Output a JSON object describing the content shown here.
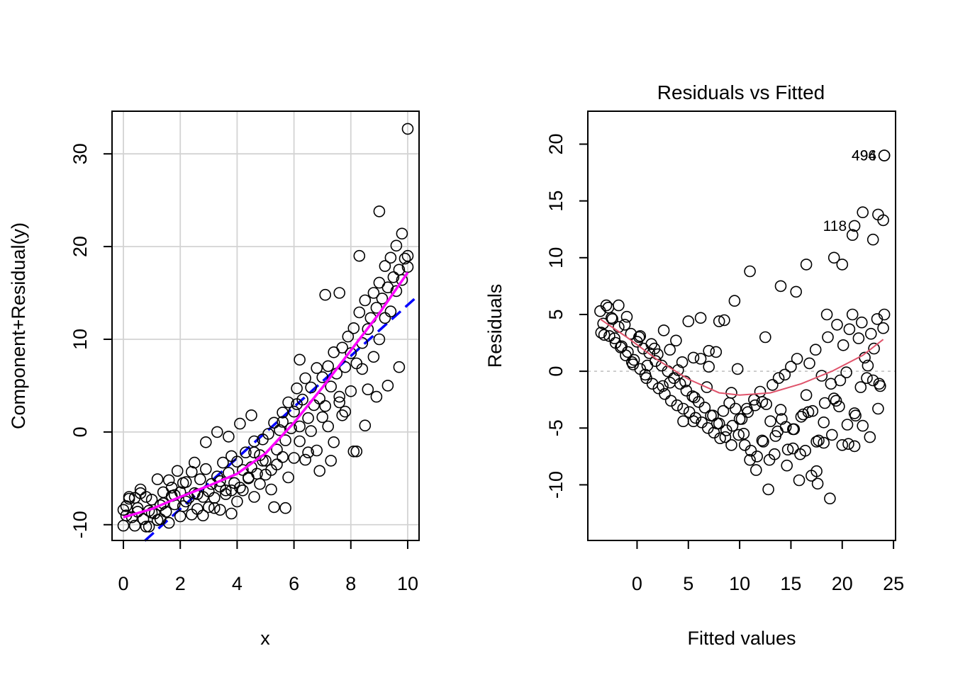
{
  "chart_data": [
    {
      "type": "scatter",
      "title": "",
      "xlabel": "x",
      "ylabel": "Component+Residual(y)",
      "xlim": [
        -0.4,
        10.4
      ],
      "ylim": [
        -11.7,
        34.6
      ],
      "xticks": [
        0,
        2,
        4,
        6,
        8,
        10
      ],
      "yticks": [
        -10,
        0,
        10,
        20,
        30
      ],
      "xtick_labels": [
        "0",
        "2",
        "4",
        "6",
        "8",
        "10"
      ],
      "ytick_labels": [
        "-10",
        "0",
        "10",
        "20",
        "30"
      ],
      "grid": true,
      "colors": {
        "points": "#000000",
        "component_line": "#0000ff",
        "residual_smooth": "#ff00ff",
        "grid": "#d3d3d3"
      },
      "component_line": {
        "style": "dashed",
        "intercept": -13.8,
        "slope": 2.75
      },
      "residual_smooth": {
        "x": [
          0,
          1,
          2,
          3,
          4,
          5,
          6,
          7,
          8,
          9,
          10
        ],
        "y": [
          -9.2,
          -8.3,
          -7.0,
          -5.8,
          -4.5,
          -2.3,
          1.0,
          4.8,
          8.8,
          12.8,
          17.2
        ]
      },
      "points": {
        "x": [
          0.0,
          0.1,
          0.2,
          0.3,
          0.4,
          0.5,
          0.6,
          0.7,
          0.8,
          0.9,
          1.0,
          1.1,
          1.2,
          1.3,
          1.4,
          1.5,
          1.6,
          1.7,
          1.8,
          1.9,
          2.0,
          2.1,
          2.2,
          2.3,
          2.4,
          2.5,
          2.6,
          2.7,
          2.8,
          2.9,
          3.0,
          3.1,
          3.2,
          3.3,
          3.4,
          3.5,
          3.6,
          3.7,
          3.8,
          3.9,
          4.0,
          4.1,
          4.2,
          4.3,
          4.4,
          4.5,
          4.6,
          4.7,
          4.8,
          4.9,
          5.0,
          5.1,
          5.2,
          5.3,
          5.4,
          5.5,
          5.6,
          5.7,
          5.8,
          5.9,
          6.0,
          6.1,
          6.2,
          6.3,
          6.4,
          6.5,
          6.6,
          6.7,
          6.8,
          6.9,
          7.0,
          7.1,
          7.2,
          7.3,
          7.4,
          7.5,
          7.6,
          7.7,
          7.8,
          7.9,
          8.0,
          8.1,
          8.2,
          8.3,
          8.4,
          8.5,
          8.6,
          8.7,
          8.8,
          8.9,
          9.0,
          9.1,
          9.2,
          9.3,
          9.4,
          9.5,
          9.6,
          9.7,
          9.8,
          9.9,
          10.0,
          0.0,
          0.2,
          0.4,
          0.6,
          0.8,
          1.0,
          1.2,
          1.4,
          1.6,
          1.8,
          2.0,
          2.2,
          2.4,
          2.6,
          2.8,
          3.0,
          3.2,
          3.4,
          3.6,
          3.8,
          4.0,
          4.2,
          4.4,
          4.6,
          4.8,
          5.0,
          5.2,
          5.4,
          5.6,
          5.8,
          6.0,
          6.2,
          6.4,
          6.6,
          6.8,
          7.0,
          7.2,
          7.4,
          7.6,
          7.8,
          8.0,
          8.2,
          8.4,
          8.6,
          8.8,
          9.0,
          9.2,
          9.4,
          9.6,
          9.8,
          10.0,
          0.1,
          0.5,
          0.9,
          1.3,
          1.7,
          2.1,
          2.5,
          2.9,
          3.3,
          3.7,
          4.1,
          4.5,
          4.9,
          5.3,
          5.7,
          6.1,
          6.5,
          6.9,
          7.3,
          7.7,
          8.1,
          8.5,
          8.9,
          9.3,
          9.7,
          3.4,
          3.8,
          4.6,
          5.6,
          6.2,
          7.1,
          7.6,
          8.3,
          9.0,
          10.0
        ],
        "y": [
          -10.1,
          -8.0,
          -7.0,
          -9.2,
          -7.1,
          -8.2,
          -6.2,
          -9.4,
          -7.0,
          -8.5,
          -7.3,
          -8.8,
          -5.1,
          -7.9,
          -6.5,
          -8.6,
          -5.2,
          -6.9,
          -7.8,
          -4.2,
          -6.5,
          -8.0,
          -5.4,
          -7.1,
          -4.3,
          -6.6,
          -8.3,
          -5.1,
          -7.0,
          -4.0,
          -6.4,
          -5.6,
          -8.2,
          -4.8,
          -5.9,
          -3.3,
          -6.7,
          -4.4,
          -2.6,
          -5.5,
          -3.2,
          -6.0,
          -4.1,
          -2.2,
          -5.0,
          -3.8,
          -1.0,
          -4.5,
          -2.5,
          -0.8,
          -3.1,
          -0.2,
          -4.1,
          1.0,
          -1.9,
          0.2,
          2.1,
          -0.9,
          3.2,
          0.4,
          2.2,
          4.7,
          0.6,
          3.5,
          5.8,
          1.5,
          4.8,
          2.9,
          6.9,
          3.6,
          5.9,
          2.8,
          7.1,
          4.9,
          8.6,
          6.3,
          3.2,
          9.1,
          7.0,
          10.3,
          8.5,
          11.2,
          7.4,
          12.9,
          9.6,
          14.2,
          11.1,
          12.3,
          15.0,
          13.4,
          16.1,
          14.4,
          17.9,
          15.6,
          18.8,
          16.7,
          20.1,
          17.5,
          21.4,
          18.7,
          19.0,
          -8.4,
          -7.2,
          -10.1,
          -6.6,
          -10.2,
          -8.7,
          -9.5,
          -7.7,
          -9.8,
          -6.8,
          -9.1,
          -7.5,
          -8.9,
          -6.7,
          -9.0,
          -8.1,
          -7.1,
          -8.4,
          -6.3,
          -8.8,
          -7.5,
          -6.3,
          -4.9,
          -7.0,
          -5.6,
          -4.6,
          -6.2,
          -3.5,
          -2.7,
          -4.9,
          -2.8,
          -1.0,
          -3.0,
          0.1,
          -2.0,
          1.6,
          0.6,
          -1.1,
          3.8,
          2.2,
          4.4,
          -2.1,
          6.8,
          4.6,
          8.1,
          10.0,
          12.3,
          13.0,
          15.2,
          16.4,
          17.8,
          -9.0,
          -8.6,
          -10.2,
          -9.4,
          -6.0,
          -5.5,
          -3.3,
          -1.1,
          0.0,
          -0.5,
          0.9,
          1.8,
          -3.1,
          -8.1,
          -8.2,
          3.0,
          -2.2,
          -4.2,
          -3.1,
          1.8,
          -2.1,
          0.7,
          3.8,
          5.0,
          7.0,
          -5.3,
          -6.3,
          -2.2,
          1.1,
          7.8,
          14.8,
          15.0,
          19.0,
          23.8,
          32.7
        ]
      }
    },
    {
      "type": "scatter",
      "title": "Residuals vs Fitted",
      "xlabel": "Fitted values",
      "ylabel": "Residuals",
      "xlim": [
        -4.8,
        25.2
      ],
      "ylim": [
        -14.9,
        22.9
      ],
      "xticks": [
        0,
        5,
        10,
        15,
        20,
        25
      ],
      "yticks": [
        -10,
        -5,
        0,
        5,
        10,
        15,
        20
      ],
      "xtick_labels": [
        "0",
        "5",
        "10",
        "15",
        "20",
        "25"
      ],
      "ytick_labels": [
        "-10",
        "-5",
        "0",
        "5",
        "10",
        "15",
        "20"
      ],
      "grid": false,
      "colors": {
        "points": "#000000",
        "smooth": "#df536b",
        "zero_line": "#bebebe"
      },
      "zero_line": {
        "y": 0,
        "style": "dotted"
      },
      "smooth": {
        "x": [
          -3.6,
          -1,
          2,
          5,
          8,
          10,
          13,
          16,
          19,
          22,
          24
        ],
        "y": [
          4.6,
          3.0,
          1.0,
          -0.7,
          -1.9,
          -2.1,
          -1.9,
          -1.1,
          0.0,
          1.4,
          2.8
        ]
      },
      "point_labels": [
        {
          "text": "494",
          "x": 24.1,
          "y": 19.0
        },
        {
          "text": "496",
          "x": 24.1,
          "y": 19.0
        },
        {
          "text": "118",
          "x": 21.2,
          "y": 12.8
        }
      ],
      "points": {
        "x": [
          -3.6,
          -3.3,
          -3.0,
          -2.7,
          -2.4,
          -2.1,
          -1.8,
          -1.5,
          -1.2,
          -0.9,
          -0.6,
          -0.3,
          0.0,
          0.3,
          0.6,
          0.9,
          1.2,
          1.5,
          1.8,
          2.1,
          2.4,
          2.7,
          3.0,
          3.3,
          3.6,
          3.9,
          4.2,
          4.5,
          4.8,
          5.1,
          5.4,
          5.7,
          6.0,
          6.3,
          6.6,
          6.9,
          7.2,
          7.5,
          7.8,
          8.1,
          8.4,
          8.7,
          9.0,
          9.3,
          9.6,
          9.9,
          10.2,
          10.5,
          10.8,
          11.1,
          11.4,
          11.7,
          12.0,
          12.3,
          12.6,
          12.9,
          13.2,
          13.5,
          13.8,
          14.1,
          14.4,
          14.7,
          15.0,
          15.3,
          15.6,
          15.9,
          16.2,
          16.5,
          16.8,
          17.1,
          17.4,
          17.7,
          18.0,
          18.3,
          18.6,
          18.9,
          19.2,
          19.5,
          19.8,
          20.1,
          20.4,
          20.7,
          21.0,
          21.3,
          21.6,
          21.9,
          22.2,
          22.5,
          22.8,
          23.1,
          23.4,
          23.7,
          24.0,
          -3.5,
          -2.8,
          -2.2,
          -1.6,
          -1.0,
          -0.4,
          0.2,
          0.8,
          1.4,
          2.0,
          2.6,
          3.2,
          3.8,
          4.4,
          5.0,
          5.6,
          6.2,
          6.8,
          7.4,
          8.0,
          8.6,
          9.2,
          9.8,
          10.4,
          11.0,
          11.6,
          12.2,
          12.8,
          13.4,
          14.0,
          14.6,
          15.2,
          15.8,
          16.4,
          17.0,
          17.6,
          18.2,
          18.8,
          19.4,
          20.0,
          20.6,
          21.2,
          21.8,
          22.4,
          23.0,
          23.6,
          24.1,
          -3.2,
          -2.5,
          -1.8,
          -1.1,
          -0.5,
          0.3,
          1.0,
          1.7,
          2.5,
          3.2,
          4.0,
          4.7,
          5.5,
          6.2,
          7.0,
          7.7,
          8.5,
          9.2,
          10.0,
          10.7,
          11.5,
          12.2,
          13.0,
          13.7,
          14.5,
          15.2,
          16.0,
          16.7,
          17.5,
          18.2,
          19.0,
          19.7,
          20.5,
          21.2,
          22.0,
          22.7,
          23.5,
          4.5,
          5.5,
          7.0,
          8.0,
          9.5,
          11.0,
          12.5,
          14.0,
          15.5,
          16.5,
          17.5,
          18.5,
          19.2,
          20.0,
          21.0,
          22.0,
          23.0,
          24.0,
          23.5,
          24.1,
          24.1,
          21.2
        ],
        "y": [
          5.3,
          4.2,
          5.8,
          3.1,
          4.6,
          2.5,
          3.9,
          2.2,
          4.1,
          1.7,
          3.3,
          1.0,
          2.6,
          0.2,
          2.0,
          -0.6,
          1.6,
          -1.1,
          0.9,
          -1.5,
          0.5,
          -2.0,
          0.0,
          -2.6,
          -0.6,
          -3.0,
          -1.1,
          -3.3,
          -1.7,
          -3.6,
          -2.2,
          -4.1,
          -2.7,
          -4.5,
          -3.2,
          -5.0,
          -3.9,
          -5.4,
          -4.6,
          -5.9,
          -3.5,
          -5.2,
          -2.8,
          -4.8,
          -3.3,
          -5.6,
          -4.2,
          -6.5,
          -3.6,
          -7.0,
          -2.5,
          -7.5,
          -1.8,
          -6.2,
          -2.9,
          -7.8,
          -1.2,
          -5.7,
          -0.6,
          -4.2,
          -0.3,
          -6.9,
          0.4,
          -5.1,
          1.1,
          -7.3,
          -3.8,
          -2.1,
          0.7,
          -3.5,
          1.9,
          -6.1,
          -0.4,
          -2.8,
          3.0,
          -1.1,
          -2.4,
          4.1,
          -0.8,
          2.3,
          -0.1,
          3.7,
          5.0,
          -3.9,
          2.9,
          4.3,
          1.2,
          0.5,
          3.3,
          2.0,
          4.6,
          -1.3,
          3.8,
          3.4,
          5.6,
          2.9,
          2.1,
          4.8,
          0.6,
          3.0,
          -0.3,
          2.4,
          1.5,
          3.6,
          -1.0,
          2.7,
          0.8,
          4.4,
          -2.3,
          1.1,
          -1.4,
          -3.9,
          -4.6,
          -5.8,
          -6.5,
          0.2,
          -5.5,
          -7.8,
          -8.7,
          -6.1,
          -10.4,
          -7.3,
          -3.4,
          -8.3,
          -6.8,
          -9.6,
          -7.0,
          -9.2,
          -9.9,
          -6.3,
          -11.2,
          -2.6,
          -6.5,
          -6.4,
          -3.7,
          -1.4,
          -0.6,
          -0.8,
          -1.1,
          5.0,
          3.2,
          4.7,
          5.8,
          1.4,
          0.8,
          3.1,
          0.5,
          2.0,
          -1.3,
          1.9,
          0.1,
          -0.9,
          1.2,
          4.7,
          0.4,
          1.7,
          4.5,
          -1.9,
          -4.2,
          -3.3,
          -3.0,
          -2.7,
          -4.4,
          -5.3,
          -4.9,
          -5.1,
          -4.0,
          -3.6,
          -6.2,
          -4.5,
          -5.6,
          -3.1,
          -4.7,
          -6.6,
          -4.8,
          -5.8,
          -3.3,
          -4.4,
          -4.4,
          1.8,
          4.4,
          6.2,
          8.8,
          3.0,
          7.5,
          7.0,
          9.4,
          -8.8,
          5.0,
          10.0,
          9.4,
          12.0,
          14.0,
          11.6,
          13.3,
          13.8,
          19.0,
          19.0,
          12.8
        ]
      }
    }
  ]
}
